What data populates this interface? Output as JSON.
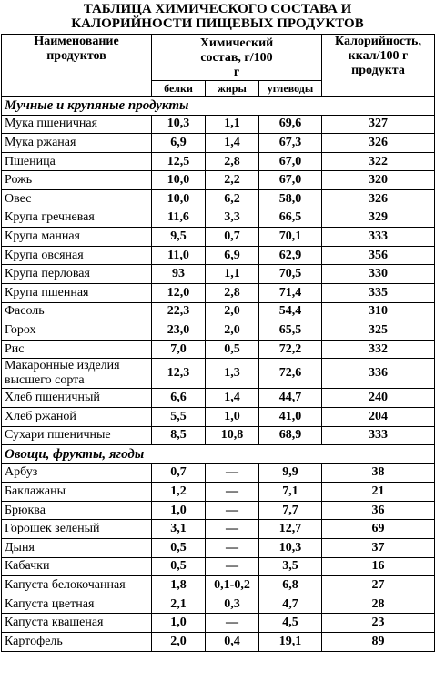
{
  "title": [
    "ТАБЛИЦА ХИМИЧЕСКОГО СОСТАВА И",
    "КАЛОРИЙНОСТИ ПИЩЕВЫХ ПРОДУКТОВ"
  ],
  "header": {
    "name": "Наименование продуктов",
    "composition": "Химический состав, г/100 г",
    "calories": "Калорийность, ккал/100 г продукта",
    "subheaders": [
      "белки",
      "жиры",
      "углеводы"
    ]
  },
  "sections": [
    {
      "title": "Мучные и крупяные продукты",
      "rows": [
        [
          "Мука пшеничная",
          "10,3",
          "1,1",
          "69,6",
          "327"
        ],
        [
          "Мука ржаная",
          "6,9",
          "1,4",
          "67,3",
          "326"
        ],
        [
          "Пшеница",
          "12,5",
          "2,8",
          "67,0",
          "322"
        ],
        [
          "Рожь",
          "10,0",
          "2,2",
          "67,0",
          "320"
        ],
        [
          "Овес",
          "10,0",
          "6,2",
          "58,0",
          "326"
        ],
        [
          "Крупа гречневая",
          "11,6",
          "3,3",
          "66,5",
          "329"
        ],
        [
          "Крупа манная",
          "9,5",
          "0,7",
          "70,1",
          "333"
        ],
        [
          "Крупа овсяная",
          "11,0",
          "6,9",
          "62,9",
          "356"
        ],
        [
          "Крупа перловая",
          "93",
          "1,1",
          "70,5",
          "330"
        ],
        [
          "Крупа пшенная",
          "12,0",
          "2,8",
          "71,4",
          "335"
        ],
        [
          "Фасоль",
          "22,3",
          "2,0",
          "54,4",
          "310"
        ],
        [
          "Горох",
          "23,0",
          "2,0",
          "65,5",
          "325"
        ],
        [
          "Рис",
          "7,0",
          "0,5",
          "72,2",
          "332"
        ],
        [
          "Макаронные изделия высшего сорта",
          "12,3",
          "1,3",
          "72,6",
          "336"
        ],
        [
          "Хлеб пшеничный",
          "6,6",
          "1,4",
          "44,7",
          "240"
        ],
        [
          "Хлеб ржаной",
          "5,5",
          "1,0",
          "41,0",
          "204"
        ],
        [
          "Сухари пшеничные",
          "8,5",
          "10,8",
          "68,9",
          "333"
        ]
      ]
    },
    {
      "title": "Овощи, фрукты, ягоды",
      "rows": [
        [
          "Арбуз",
          "0,7",
          "—",
          "9,9",
          "38"
        ],
        [
          "Баклажаны",
          "1,2",
          "—",
          "7,1",
          "21"
        ],
        [
          "Брюква",
          "1,0",
          "—",
          "7,7",
          "36"
        ],
        [
          "Горошек зеленый",
          "3,1",
          "—",
          "12,7",
          "69"
        ],
        [
          "Дыня",
          "0,5",
          "—",
          "10,3",
          "37"
        ],
        [
          "Кабачки",
          "0,5",
          "—",
          "3,5",
          "16"
        ],
        [
          "Капуста белокочанная",
          "1,8",
          "0,1-0,2",
          "6,8",
          "27"
        ],
        [
          "Капуста цветная",
          "2,1",
          "0,3",
          "4,7",
          "28"
        ],
        [
          "Капуста квашеная",
          "1,0",
          "—",
          "4,5",
          "23"
        ],
        [
          "Картофель",
          "2,0",
          "0,4",
          "19,1",
          "89"
        ]
      ]
    }
  ]
}
